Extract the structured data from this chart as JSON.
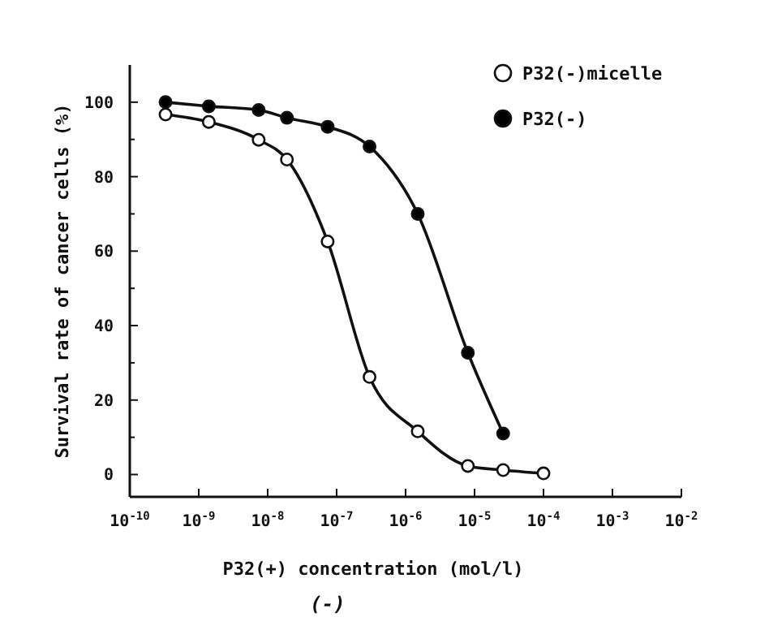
{
  "chart_data": {
    "type": "line",
    "xlabel": "P32(+) concentration (mol/l)",
    "ylabel": "Survival rate of cancer cells (%)",
    "annotations": [
      "(-)"
    ],
    "log": "x",
    "xlim": [
      1e-10,
      0.01
    ],
    "xticks": [
      {
        "value": 1e-10,
        "label": "10$^{-10}$"
      },
      {
        "value": 1e-09,
        "label": "10$^{-9}$"
      },
      {
        "value": 1e-08,
        "label": "10$^{-8}$"
      },
      {
        "value": 1e-07,
        "label": "10$^{-7}$"
      },
      {
        "value": 1e-06,
        "label": "10$^{-6}$"
      },
      {
        "value": 1e-05,
        "label": "10$^{-5}$"
      },
      {
        "value": 0.0001,
        "label": "10$^{-4}$"
      },
      {
        "value": 0.001,
        "label": "10$^{-3}$"
      },
      {
        "value": 0.01,
        "label": "10$^{-2}$"
      }
    ],
    "ylim": [
      -6,
      110
    ],
    "yticks": [
      0,
      {
        "value": 10,
        "label": null
      },
      20,
      {
        "value": 30,
        "label": null
      },
      40,
      {
        "value": 50,
        "label": null
      },
      60,
      {
        "value": 70,
        "label": null
      },
      80,
      {
        "value": 90,
        "label": null
      },
      100
    ],
    "grid": false,
    "legend": "top right",
    "marker": "circle",
    "line_style": "solid",
    "series": [
      {
        "name": "P32(-)micelle",
        "color": "#ffffff",
        "x": [
          3.3e-10,
          1.4e-09,
          7.4e-09,
          1.9e-08,
          7.4e-08,
          3e-07,
          1.5e-06,
          8e-06,
          2.6e-05,
          0.0001
        ],
        "values": [
          96.7,
          94.7,
          89.9,
          84.6,
          62.6,
          26.2,
          11.6,
          2.3,
          1.2,
          0.3
        ]
      },
      {
        "name": "P32(-)",
        "color": "#000000",
        "x": [
          3.3e-10,
          1.4e-09,
          7.4e-09,
          1.9e-08,
          7.4e-08,
          3e-07,
          1.5e-06,
          8e-06,
          2.6e-05
        ],
        "values": [
          100,
          98.9,
          97.9,
          95.8,
          93.4,
          88.1,
          70,
          32.7,
          11
        ]
      }
    ]
  }
}
